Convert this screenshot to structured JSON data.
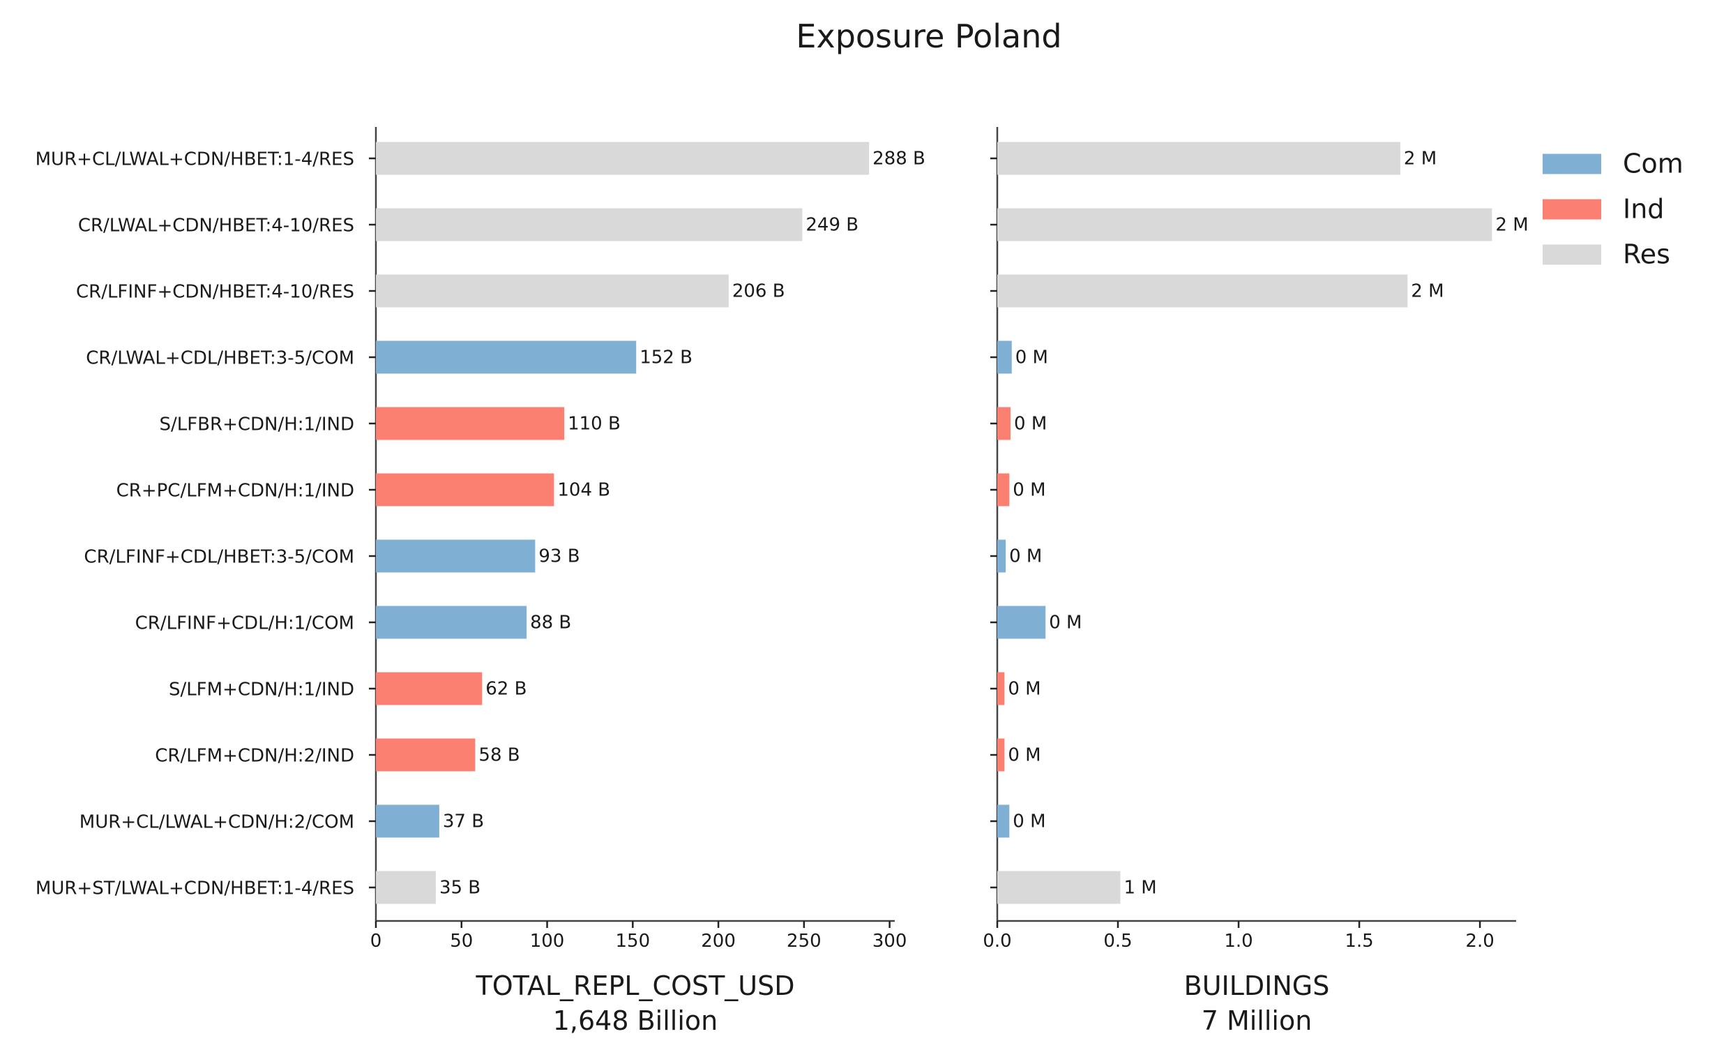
{
  "chart_data": {
    "title": "Exposure Poland",
    "type": "bar",
    "orientation": "horizontal",
    "categories": [
      "MUR+CL/LWAL+CDN/HBET:1-4/RES",
      "CR/LWAL+CDN/HBET:4-10/RES",
      "CR/LFINF+CDN/HBET:4-10/RES",
      "CR/LWAL+CDL/HBET:3-5/COM",
      "S/LFBR+CDN/H:1/IND",
      "CR+PC/LFM+CDN/H:1/IND",
      "CR/LFINF+CDL/HBET:3-5/COM",
      "CR/LFINF+CDL/H:1/COM",
      "S/LFM+CDN/H:1/IND",
      "CR/LFM+CDN/H:2/IND",
      "MUR+CL/LWAL+CDN/H:2/COM",
      "MUR+ST/LWAL+CDN/HBET:1-4/RES"
    ],
    "occupancy": [
      "Res",
      "Res",
      "Res",
      "Com",
      "Ind",
      "Ind",
      "Com",
      "Com",
      "Ind",
      "Ind",
      "Com",
      "Res"
    ],
    "legend": {
      "position": "top-right",
      "entries": [
        {
          "label": "Com",
          "color": "#7fafd3"
        },
        {
          "label": "Ind",
          "color": "#fb8072"
        },
        {
          "label": "Res",
          "color": "#d9d9d9"
        }
      ]
    },
    "panels": [
      {
        "id": "cost",
        "xlabel": "TOTAL_REPL_COST_USD",
        "total_label": "1,648 Billion",
        "values": [
          288,
          249,
          206,
          152,
          110,
          104,
          93,
          88,
          62,
          58,
          37,
          35
        ],
        "value_labels": [
          "288 B",
          "249 B",
          "206 B",
          "152 B",
          "110 B",
          "104 B",
          "93 B",
          "88 B",
          "62 B",
          "58 B",
          "37 B",
          "35 B"
        ],
        "xlim": [
          0,
          303
        ],
        "ticks": [
          0,
          50,
          100,
          150,
          200,
          250,
          300
        ],
        "tick_labels": [
          "0",
          "50",
          "100",
          "150",
          "200",
          "250",
          "300"
        ],
        "show_category_labels": true
      },
      {
        "id": "buildings",
        "xlabel": "BUILDINGS",
        "total_label": "7 Million",
        "values": [
          1.67,
          2.05,
          1.7,
          0.06,
          0.055,
          0.05,
          0.035,
          0.2,
          0.03,
          0.03,
          0.05,
          0.51
        ],
        "value_labels": [
          "2 M",
          "2 M",
          "2 M",
          "0 M",
          "0 M",
          "0 M",
          "0 M",
          "0 M",
          "0 M",
          "0 M",
          "0 M",
          "1 M"
        ],
        "xlim": [
          0,
          2.15
        ],
        "ticks": [
          0,
          0.5,
          1.0,
          1.5,
          2.0
        ],
        "tick_labels": [
          "0.0",
          "0.5",
          "1.0",
          "1.5",
          "2.0"
        ],
        "show_category_labels": false
      }
    ]
  }
}
